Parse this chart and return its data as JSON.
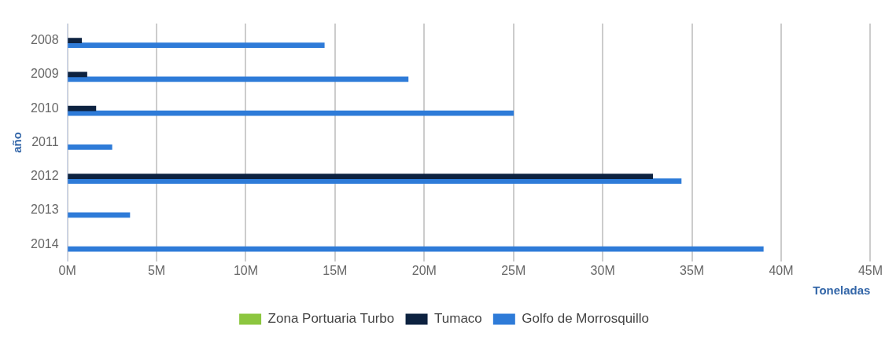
{
  "chart_data": {
    "type": "bar",
    "orientation": "horizontal",
    "xlabel": "Toneladas",
    "ylabel": "año",
    "categories": [
      "2008",
      "2009",
      "2010",
      "2011",
      "2012",
      "2013",
      "2014"
    ],
    "series": [
      {
        "name": "Zona Portuaria Turbo",
        "color": "#8cc63f",
        "values": [
          null,
          null,
          null,
          null,
          null,
          null,
          null
        ]
      },
      {
        "name": "Tumaco",
        "color": "#0d2240",
        "values": [
          0.8,
          1.1,
          1.6,
          null,
          32.8,
          null,
          null
        ]
      },
      {
        "name": "Golfo de Morrosquillo",
        "color": "#2e7bd8",
        "values": [
          14.4,
          19.1,
          25.0,
          2.5,
          34.4,
          3.5,
          39.0
        ]
      }
    ],
    "xlim": [
      0,
      45
    ],
    "xticks": [
      {
        "value": 0,
        "label": "0M"
      },
      {
        "value": 5,
        "label": "5M"
      },
      {
        "value": 10,
        "label": "10M"
      },
      {
        "value": 15,
        "label": "15M"
      },
      {
        "value": 20,
        "label": "20M"
      },
      {
        "value": 25,
        "label": "25M"
      },
      {
        "value": 30,
        "label": "30M"
      },
      {
        "value": 35,
        "label": "35M"
      },
      {
        "value": 40,
        "label": "40M"
      },
      {
        "value": 45,
        "label": "45M"
      }
    ],
    "grid": "x",
    "legend": "bottom"
  }
}
